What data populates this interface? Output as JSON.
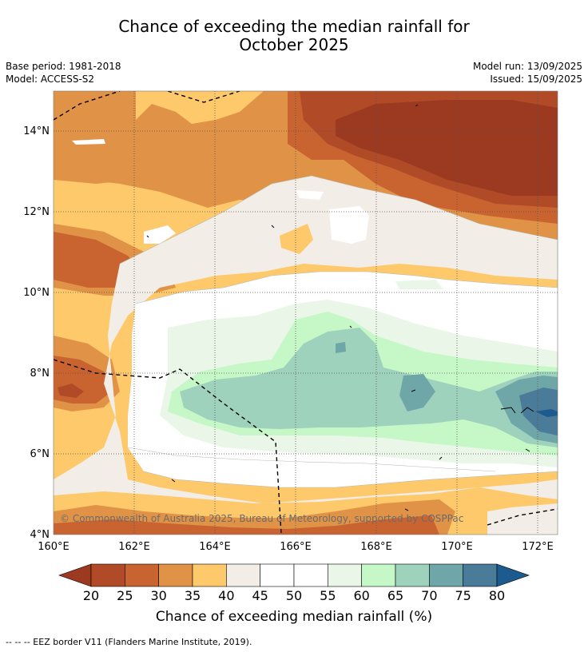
{
  "title_line1": "Chance of exceeding the median rainfall for",
  "title_line2": "October 2025",
  "base_period": "Base period: 1981-2018",
  "model": "Model: ACCESS-S2",
  "model_run": "Model run: 13/09/2025",
  "issued": "Issued: 15/09/2025",
  "copyright": "© Commonwealth of Australia 2025, Bureau of Meteorology, supported by COSPPac",
  "lat_labels": [
    "14°N",
    "12°N",
    "10°N",
    "8°N",
    "6°N",
    "4°N"
  ],
  "lon_labels": [
    "160°E",
    "162°E",
    "164°E",
    "166°E",
    "168°E",
    "170°E",
    "172°E"
  ],
  "colorbar": {
    "ticks": [
      "20",
      "25",
      "30",
      "35",
      "40",
      "45",
      "50",
      "55",
      "60",
      "65",
      "70",
      "75",
      "80"
    ],
    "colors": [
      "#9b3a20",
      "#b14b27",
      "#c96431",
      "#e09347",
      "#fdc96a",
      "#f2ede6",
      "#ffffff",
      "#ffffff",
      "#e9f6e8",
      "#c6f7c6",
      "#9ed2bc",
      "#6fa7a8",
      "#4a7b98",
      "#1d5a8e"
    ],
    "title": "Chance of exceeding median rainfall (%)"
  },
  "footnote": "--  --  -- EEZ border V11 (Flanders Marine Institute, 2019)."
}
